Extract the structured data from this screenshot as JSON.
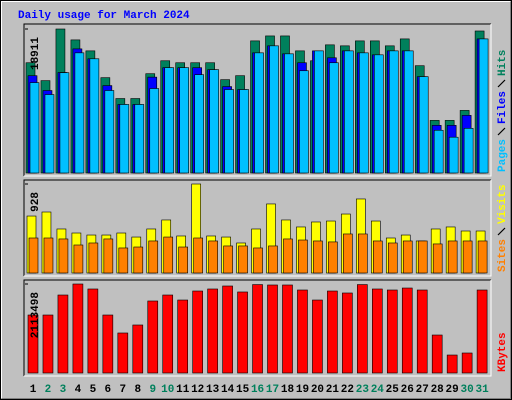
{
  "title": "Daily usage for March 2024",
  "chart_data": [
    {
      "type": "bar",
      "ylim": [
        0,
        18911
      ],
      "yticks": [
        18911
      ],
      "series": [
        {
          "name": "Hits",
          "color": "#00805c",
          "values": [
            14480,
            12130,
            18911,
            17480,
            16040,
            12520,
            9780,
            9780,
            13040,
            14740,
            14480,
            14480,
            14480,
            12260,
            12780,
            17350,
            18000,
            18000,
            16040,
            14740,
            16830,
            16700,
            17350,
            17350,
            16700,
            17610,
            14090,
            6910,
            6910,
            8220,
            18650
          ]
        },
        {
          "name": "Files",
          "color": "#0000ff",
          "values": [
            12780,
            10830,
            13200,
            16300,
            15000,
            11480,
            9000,
            9000,
            12590,
            13830,
            13830,
            13830,
            13570,
            11350,
            10960,
            15780,
            16700,
            15650,
            14480,
            16040,
            15130,
            16040,
            15780,
            15520,
            16040,
            16040,
            12650,
            6260,
            6260,
            7570,
            17610
          ]
        },
        {
          "name": "Pages",
          "color": "#00c0ff",
          "values": [
            11870,
            10300,
            13170,
            15780,
            15000,
            10830,
            9000,
            9000,
            11090,
            13830,
            13830,
            12910,
            13570,
            10960,
            10960,
            15780,
            16700,
            15650,
            13430,
            16040,
            14480,
            16040,
            15780,
            15520,
            16040,
            16040,
            12650,
            5610,
            4700,
            5870,
            17610
          ]
        }
      ]
    },
    {
      "type": "bar",
      "ylim": [
        0,
        928
      ],
      "yticks": [
        928
      ],
      "series": [
        {
          "name": "Visits",
          "color": "#ffff00",
          "values": [
            594,
            636,
            459,
            417,
            396,
            396,
            417,
            375,
            459,
            553,
            386,
            928,
            386,
            375,
            313,
            459,
            720,
            553,
            480,
            532,
            542,
            615,
            772,
            542,
            365,
            396,
            334,
            459,
            480,
            438,
            438
          ]
        },
        {
          "name": "Sites",
          "color": "#ff8000",
          "values": [
            365,
            365,
            355,
            292,
            313,
            355,
            261,
            271,
            334,
            375,
            271,
            365,
            334,
            282,
            282,
            261,
            282,
            355,
            344,
            334,
            324,
            407,
            407,
            334,
            313,
            334,
            334,
            303,
            334,
            334,
            334
          ]
        }
      ]
    },
    {
      "type": "bar",
      "ylim": [
        0,
        2113498
      ],
      "yticks": [
        2113498
      ],
      "categories": [
        "1",
        "2",
        "3",
        "4",
        "5",
        "6",
        "7",
        "8",
        "9",
        "10",
        "11",
        "12",
        "13",
        "14",
        "15",
        "16",
        "17",
        "18",
        "19",
        "20",
        "21",
        "22",
        "23",
        "24",
        "25",
        "26",
        "27",
        "28",
        "29",
        "30",
        "31"
      ],
      "category_colors": [
        "#000000",
        "#00805c",
        "#00805c",
        "#000000",
        "#000000",
        "#000000",
        "#000000",
        "#000000",
        "#00805c",
        "#00805c",
        "#000000",
        "#000000",
        "#000000",
        "#000000",
        "#000000",
        "#00805c",
        "#00805c",
        "#000000",
        "#000000",
        "#000000",
        "#000000",
        "#000000",
        "#00805c",
        "#00805c",
        "#000000",
        "#000000",
        "#000000",
        "#000000",
        "#000000",
        "#00805c",
        "#00805c"
      ],
      "series": [
        {
          "name": "KBytes",
          "color": "#ff0000",
          "values": [
            1377000,
            1377000,
            1852000,
            2113498,
            1995000,
            1377000,
            950000,
            1140000,
            1710000,
            1852000,
            1733000,
            1947000,
            1995000,
            2066000,
            1924000,
            2100000,
            2090000,
            2090000,
            1971000,
            1733000,
            1947000,
            1900000,
            2100000,
            1995000,
            1971000,
            2018000,
            1971000,
            902000,
            427000,
            475000,
            1971000
          ]
        }
      ]
    }
  ]
}
